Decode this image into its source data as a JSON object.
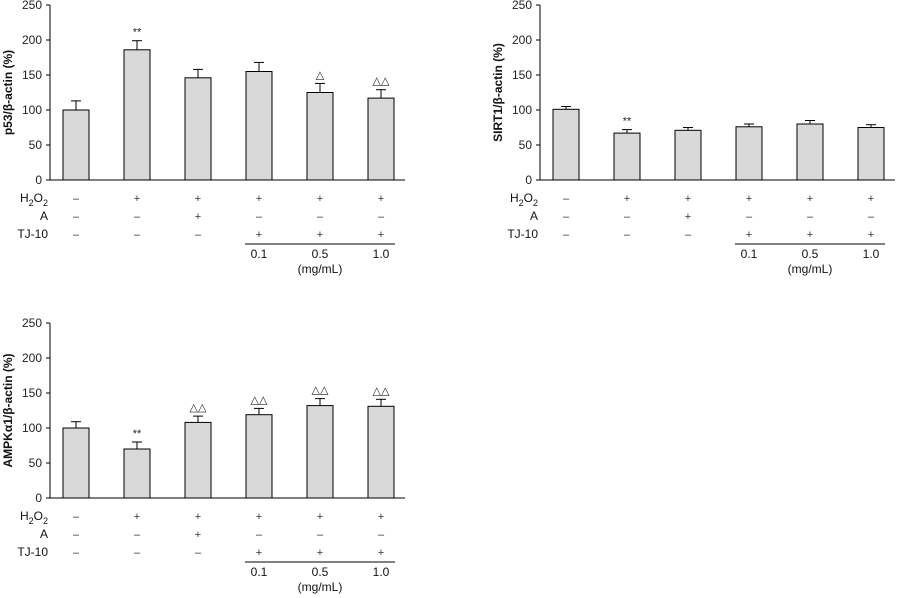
{
  "chart_data": [
    {
      "type": "bar",
      "ylabel": "p53/β-actin (%)",
      "ylim": [
        0,
        250
      ],
      "yticks": [
        0,
        50,
        100,
        150,
        200,
        250
      ],
      "values": [
        100,
        186,
        146,
        155,
        125,
        117
      ],
      "errors": [
        13,
        13,
        12,
        13,
        13,
        12
      ],
      "annotations": [
        "",
        "**",
        "",
        "",
        "△",
        "△△"
      ],
      "bar_color": "#d9d9d9"
    },
    {
      "type": "bar",
      "ylabel": "SIRT1/β-actin (%)",
      "ylim": [
        0,
        250
      ],
      "yticks": [
        0,
        50,
        100,
        150,
        200,
        250
      ],
      "values": [
        101,
        67,
        71,
        76,
        80,
        75
      ],
      "errors": [
        4,
        5,
        4,
        4,
        5,
        4
      ],
      "annotations": [
        "",
        "**",
        "",
        "",
        "",
        ""
      ],
      "bar_color": "#d9d9d9"
    },
    {
      "type": "bar",
      "ylabel": "AMPKα1/β-actin (%)",
      "ylim": [
        0,
        250
      ],
      "yticks": [
        0,
        50,
        100,
        150,
        200,
        250
      ],
      "values": [
        100,
        70,
        108,
        119,
        132,
        131
      ],
      "errors": [
        9,
        10,
        9,
        9,
        10,
        10
      ],
      "annotations": [
        "",
        "**",
        "△△",
        "△△",
        "△△",
        "△△"
      ],
      "bar_color": "#d9d9d9"
    }
  ],
  "conditions": {
    "rows": [
      {
        "label": "H",
        "sub": "2",
        "label_tail": "O",
        "sub2": "2",
        "signs": [
          "–",
          "+",
          "+",
          "+",
          "+",
          "+"
        ]
      },
      {
        "label": "A",
        "signs": [
          "–",
          "–",
          "+",
          "–",
          "–",
          "–"
        ]
      },
      {
        "label": "TJ-10",
        "signs": [
          "–",
          "–",
          "–",
          "+",
          "+",
          "+"
        ]
      }
    ],
    "doses": [
      "0.1",
      "0.5",
      "1.0"
    ],
    "unit": "(mg/mL)"
  }
}
